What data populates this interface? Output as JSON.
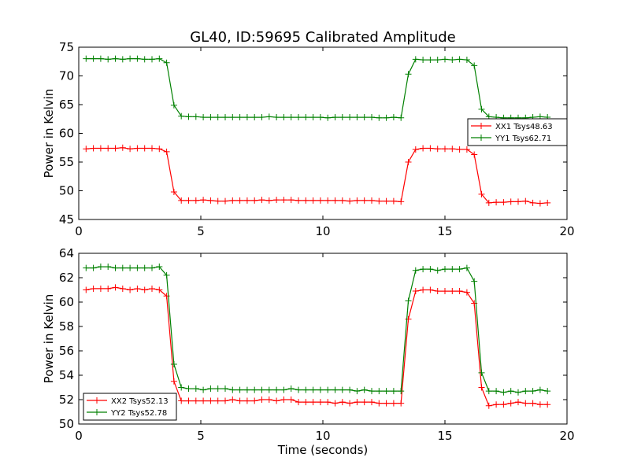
{
  "title": "GL40, ID:59695 Calibrated Amplitude",
  "chart_data": [
    {
      "type": "line",
      "xlabel": "",
      "ylabel": "Power in Kelvin",
      "xlim": [
        0,
        20
      ],
      "ylim": [
        45,
        75
      ],
      "xticks": [
        "0",
        "5",
        "10",
        "15",
        "20"
      ],
      "yticks": [
        "45",
        "50",
        "55",
        "60",
        "65",
        "70",
        "75"
      ],
      "grid": false,
      "legend_position": "center-right",
      "x": [
        0.3,
        0.6,
        0.9,
        1.2,
        1.5,
        1.8,
        2.1,
        2.4,
        2.7,
        3.0,
        3.3,
        3.6,
        3.9,
        4.2,
        4.5,
        4.8,
        5.1,
        5.4,
        5.7,
        6.0,
        6.3,
        6.6,
        6.9,
        7.2,
        7.5,
        7.8,
        8.1,
        8.4,
        8.7,
        9.0,
        9.3,
        9.6,
        9.9,
        10.2,
        10.5,
        10.8,
        11.1,
        11.4,
        11.7,
        12.0,
        12.3,
        12.6,
        12.9,
        13.2,
        13.5,
        13.8,
        14.1,
        14.4,
        14.7,
        15.0,
        15.3,
        15.6,
        15.9,
        16.2,
        16.5,
        16.8,
        17.1,
        17.4,
        17.7,
        18.0,
        18.3,
        18.6,
        18.9,
        19.2
      ],
      "series": [
        {
          "name": "XX1 Tsys48.63",
          "color": "#ff0000",
          "values": [
            57.3,
            57.4,
            57.4,
            57.4,
            57.4,
            57.5,
            57.3,
            57.4,
            57.4,
            57.4,
            57.3,
            56.8,
            49.8,
            48.3,
            48.3,
            48.3,
            48.4,
            48.3,
            48.2,
            48.2,
            48.3,
            48.3,
            48.3,
            48.3,
            48.4,
            48.3,
            48.4,
            48.4,
            48.4,
            48.3,
            48.3,
            48.3,
            48.3,
            48.3,
            48.3,
            48.3,
            48.2,
            48.3,
            48.3,
            48.3,
            48.2,
            48.2,
            48.2,
            48.1,
            55.0,
            57.2,
            57.4,
            57.4,
            57.3,
            57.3,
            57.3,
            57.2,
            57.2,
            56.3,
            49.4,
            47.9,
            48.0,
            48.0,
            48.1,
            48.1,
            48.2,
            47.9,
            47.8,
            47.9
          ]
        },
        {
          "name": "YY1 Tsys62.71",
          "color": "#008000",
          "values": [
            73.0,
            73.0,
            73.0,
            72.9,
            73.0,
            72.9,
            73.0,
            73.0,
            72.9,
            72.9,
            73.0,
            72.3,
            64.9,
            63.0,
            62.9,
            62.9,
            62.8,
            62.8,
            62.8,
            62.8,
            62.8,
            62.8,
            62.8,
            62.8,
            62.8,
            62.9,
            62.8,
            62.8,
            62.8,
            62.8,
            62.8,
            62.8,
            62.8,
            62.7,
            62.8,
            62.8,
            62.8,
            62.8,
            62.8,
            62.8,
            62.7,
            62.7,
            62.8,
            62.7,
            70.3,
            72.9,
            72.8,
            72.8,
            72.8,
            72.9,
            72.8,
            72.9,
            72.8,
            71.8,
            64.2,
            62.9,
            62.8,
            62.7,
            62.7,
            62.7,
            62.7,
            62.8,
            62.9,
            62.8
          ]
        }
      ]
    },
    {
      "type": "line",
      "xlabel": "Time (seconds)",
      "ylabel": "Power in Kelvin",
      "xlim": [
        0,
        20
      ],
      "ylim": [
        50,
        64
      ],
      "xticks": [
        "0",
        "5",
        "10",
        "15",
        "20"
      ],
      "yticks": [
        "50",
        "52",
        "54",
        "56",
        "58",
        "60",
        "62",
        "64"
      ],
      "grid": false,
      "legend_position": "lower-left",
      "x": [
        0.3,
        0.6,
        0.9,
        1.2,
        1.5,
        1.8,
        2.1,
        2.4,
        2.7,
        3.0,
        3.3,
        3.6,
        3.9,
        4.2,
        4.5,
        4.8,
        5.1,
        5.4,
        5.7,
        6.0,
        6.3,
        6.6,
        6.9,
        7.2,
        7.5,
        7.8,
        8.1,
        8.4,
        8.7,
        9.0,
        9.3,
        9.6,
        9.9,
        10.2,
        10.5,
        10.8,
        11.1,
        11.4,
        11.7,
        12.0,
        12.3,
        12.6,
        12.9,
        13.2,
        13.5,
        13.8,
        14.1,
        14.4,
        14.7,
        15.0,
        15.3,
        15.6,
        15.9,
        16.2,
        16.5,
        16.8,
        17.1,
        17.4,
        17.7,
        18.0,
        18.3,
        18.6,
        18.9,
        19.2
      ],
      "series": [
        {
          "name": "XX2 Tsys52.13",
          "color": "#ff0000",
          "values": [
            61.0,
            61.1,
            61.1,
            61.1,
            61.2,
            61.1,
            61.0,
            61.1,
            61.0,
            61.1,
            61.0,
            60.5,
            53.5,
            51.9,
            51.9,
            51.9,
            51.9,
            51.9,
            51.9,
            51.9,
            52.0,
            51.9,
            51.9,
            51.9,
            52.0,
            52.0,
            51.9,
            52.0,
            52.0,
            51.8,
            51.8,
            51.8,
            51.8,
            51.8,
            51.7,
            51.8,
            51.7,
            51.8,
            51.8,
            51.8,
            51.7,
            51.7,
            51.7,
            51.7,
            58.6,
            60.9,
            61.0,
            61.0,
            60.9,
            60.9,
            60.9,
            60.9,
            60.8,
            59.9,
            53.0,
            51.5,
            51.6,
            51.6,
            51.7,
            51.8,
            51.7,
            51.7,
            51.6,
            51.6
          ]
        },
        {
          "name": "YY2 Tsys52.78",
          "color": "#008000",
          "values": [
            62.8,
            62.8,
            62.9,
            62.9,
            62.8,
            62.8,
            62.8,
            62.8,
            62.8,
            62.8,
            62.9,
            62.2,
            54.9,
            53.0,
            52.9,
            52.9,
            52.8,
            52.9,
            52.9,
            52.9,
            52.8,
            52.8,
            52.8,
            52.8,
            52.8,
            52.8,
            52.8,
            52.8,
            52.9,
            52.8,
            52.8,
            52.8,
            52.8,
            52.8,
            52.8,
            52.8,
            52.8,
            52.7,
            52.8,
            52.7,
            52.7,
            52.7,
            52.7,
            52.7,
            60.1,
            62.6,
            62.7,
            62.7,
            62.6,
            62.7,
            62.7,
            62.7,
            62.8,
            61.7,
            54.2,
            52.7,
            52.7,
            52.6,
            52.7,
            52.6,
            52.7,
            52.7,
            52.8,
            52.7
          ]
        }
      ]
    }
  ]
}
